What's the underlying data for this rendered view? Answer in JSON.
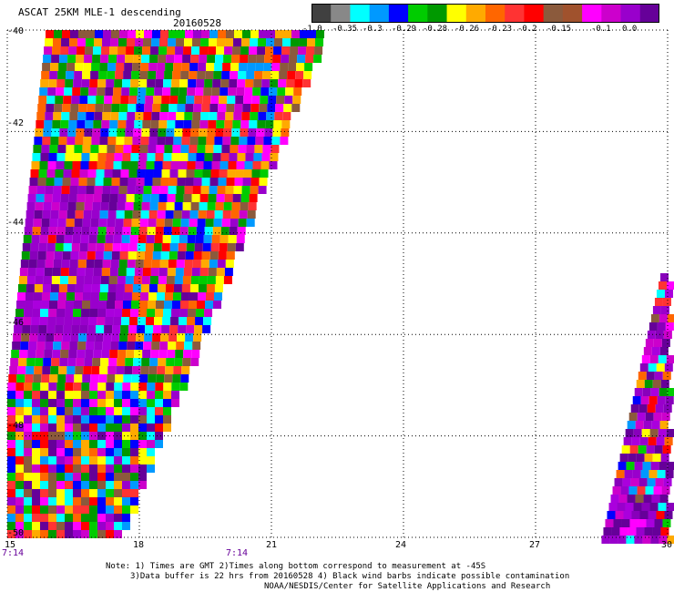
{
  "header": {
    "title": "ASCAT 25KM MLE-1 descending",
    "date": "20160528"
  },
  "colorbar": {
    "colors": [
      "#404040",
      "#888888",
      "#00ffff",
      "#0099ff",
      "#0000ff",
      "#00cc00",
      "#009900",
      "#ffff00",
      "#ffaa00",
      "#ff6600",
      "#ff3333",
      "#ff0000",
      "#8b5a3c",
      "#a0522d",
      "#ff00ff",
      "#cc00cc",
      "#9900cc",
      "#660099"
    ],
    "labels": [
      "-1.0",
      "-0.35",
      "-0.3",
      "-0.29",
      "-0.28",
      "-0.26",
      "-0.23",
      "-0.2",
      "-0.15",
      "-0.1",
      "0.0"
    ]
  },
  "axes": {
    "lat_labels": [
      "-40",
      "-42",
      "-44",
      "-46",
      "-48",
      "-50"
    ],
    "lon_labels": [
      "15",
      "18",
      "21",
      "24",
      "27",
      "30"
    ],
    "lat_range": [
      -50,
      -40
    ],
    "lon_range": [
      15,
      30
    ],
    "grid": true
  },
  "times": [
    "7:14",
    "7:14"
  ],
  "notes": [
    "Note: 1) Times are GMT 2)Times along bottom correspond to measurement at -45S",
    "3)Data buffer is 22 hrs from 20160528 4) Black wind barbs indicate possible contamination",
    "NOAA/NESDIS/Center for Satellite Applications and Research"
  ]
}
